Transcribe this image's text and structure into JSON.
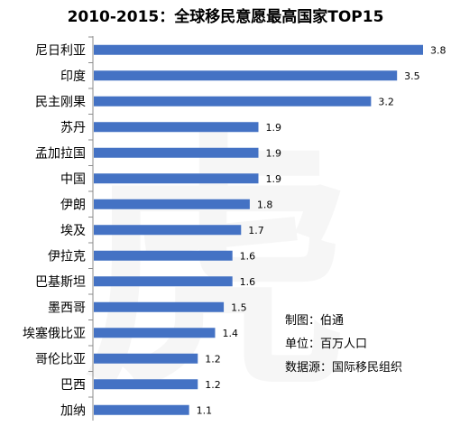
{
  "chart_data": {
    "type": "bar",
    "orientation": "horizontal",
    "title": "2010-2015：全球移民意愿最高国家TOP15",
    "categories": [
      "尼日利亚",
      "印度",
      "民主刚果",
      "苏丹",
      "孟加拉国",
      "中国",
      "伊朗",
      "埃及",
      "伊拉克",
      "巴基斯坦",
      "墨西哥",
      "埃塞俄比亚",
      "哥伦比亚",
      "巴西",
      "加纳"
    ],
    "values": [
      3.8,
      3.5,
      3.2,
      1.9,
      1.9,
      1.9,
      1.8,
      1.7,
      1.6,
      1.6,
      1.5,
      1.4,
      1.2,
      1.2,
      1.1
    ],
    "value_labels": [
      "3.8",
      "3.5",
      "3.2",
      "1.9",
      "1.9",
      "1.9",
      "1.8",
      "1.7",
      "1.6",
      "1.6",
      "1.5",
      "1.4",
      "1.2",
      "1.2",
      "1.1"
    ],
    "xlim": [
      0,
      3.8
    ],
    "grid": false,
    "legend": "none",
    "bar_color": "#4472C4"
  },
  "notes": {
    "maker": "制图：伯通",
    "unit": "单位：百万人口",
    "source": "数据源：国际移民组织"
  }
}
